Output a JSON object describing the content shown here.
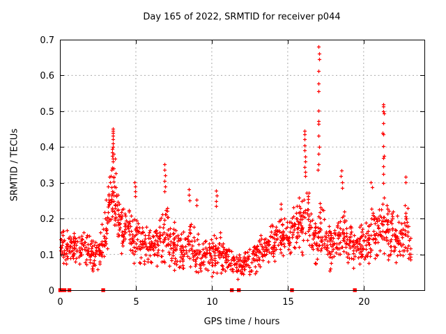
{
  "title": "Day 165 of 2022, SRMTID for receiver p044",
  "axes": {
    "xlabel": "GPS time / hours",
    "ylabel": "SRMTID / TECUs",
    "xlim": [
      0,
      24
    ],
    "ylim": [
      0,
      0.7
    ],
    "xticks": [
      {
        "value": 0,
        "label": "0"
      },
      {
        "value": 5,
        "label": "5"
      },
      {
        "value": 10,
        "label": "10"
      },
      {
        "value": 15,
        "label": "15"
      },
      {
        "value": 20,
        "label": "20"
      }
    ],
    "yticks": [
      {
        "value": 0.0,
        "label": "0"
      },
      {
        "value": 0.1,
        "label": "0.1"
      },
      {
        "value": 0.2,
        "label": "0.2"
      },
      {
        "value": 0.3,
        "label": "0.3"
      },
      {
        "value": 0.4,
        "label": "0.4"
      },
      {
        "value": 0.5,
        "label": "0.5"
      },
      {
        "value": 0.6,
        "label": "0.6"
      },
      {
        "value": 0.7,
        "label": "0.7"
      }
    ],
    "grid": true
  },
  "colors": {
    "marker": "#ff0000",
    "grid": "#a8a8a8",
    "border": "#000000",
    "background": "#ffffff"
  },
  "chart_data": {
    "type": "scatter",
    "marker": "plus",
    "series_name": "SRMTID",
    "x_range_of_data": [
      0.0,
      23.1
    ],
    "notable_features": [
      "baseline band 0.05-0.2 TECUs across whole day",
      "broad peak near 3.5 h reaching 0.45",
      "columns near 4.9 h (0.30), 6.9 h (0.35), 8.5 h (0.28), 10.3 h (0.28)",
      "quiet dip 11-12.5 h down to ~0.03",
      "column near 16.1 h (0.44)",
      "tall sparse spike at 17.0 h reaching 0.68",
      "spike at 21.3 h reaching 0.52"
    ],
    "envelope": [
      {
        "x": 0.0,
        "mean": 0.115,
        "spread": 0.055,
        "density": 70
      },
      {
        "x": 0.7,
        "mean": 0.12,
        "spread": 0.05,
        "density": 65
      },
      {
        "x": 1.5,
        "mean": 0.125,
        "spread": 0.055,
        "density": 65
      },
      {
        "x": 2.1,
        "mean": 0.095,
        "spread": 0.05,
        "density": 60
      },
      {
        "x": 2.6,
        "mean": 0.1,
        "spread": 0.06,
        "density": 62
      },
      {
        "x": 3.0,
        "mean": 0.16,
        "spread": 0.09,
        "density": 80
      },
      {
        "x": 3.3,
        "mean": 0.25,
        "spread": 0.11,
        "density": 95
      },
      {
        "x": 3.55,
        "mean": 0.3,
        "spread": 0.13,
        "density": 95
      },
      {
        "x": 3.8,
        "mean": 0.21,
        "spread": 0.09,
        "density": 80
      },
      {
        "x": 4.1,
        "mean": 0.165,
        "spread": 0.075,
        "density": 70
      },
      {
        "x": 4.4,
        "mean": 0.185,
        "spread": 0.08,
        "density": 70
      },
      {
        "x": 4.7,
        "mean": 0.14,
        "spread": 0.065,
        "density": 65
      },
      {
        "x": 5.0,
        "mean": 0.155,
        "spread": 0.085,
        "density": 65
      },
      {
        "x": 5.3,
        "mean": 0.125,
        "spread": 0.06,
        "density": 60
      },
      {
        "x": 6.0,
        "mean": 0.12,
        "spread": 0.06,
        "density": 60
      },
      {
        "x": 6.5,
        "mean": 0.13,
        "spread": 0.07,
        "density": 60
      },
      {
        "x": 6.95,
        "mean": 0.165,
        "spread": 0.095,
        "density": 70
      },
      {
        "x": 7.3,
        "mean": 0.14,
        "spread": 0.08,
        "density": 65
      },
      {
        "x": 7.8,
        "mean": 0.105,
        "spread": 0.06,
        "density": 60
      },
      {
        "x": 8.3,
        "mean": 0.115,
        "spread": 0.07,
        "density": 60
      },
      {
        "x": 8.6,
        "mean": 0.13,
        "spread": 0.08,
        "density": 60
      },
      {
        "x": 9.0,
        "mean": 0.1,
        "spread": 0.06,
        "density": 60
      },
      {
        "x": 9.6,
        "mean": 0.1,
        "spread": 0.06,
        "density": 60
      },
      {
        "x": 10.0,
        "mean": 0.09,
        "spread": 0.055,
        "density": 60
      },
      {
        "x": 10.35,
        "mean": 0.115,
        "spread": 0.075,
        "density": 60
      },
      {
        "x": 10.8,
        "mean": 0.09,
        "spread": 0.055,
        "density": 58
      },
      {
        "x": 11.3,
        "mean": 0.075,
        "spread": 0.045,
        "density": 55
      },
      {
        "x": 12.0,
        "mean": 0.07,
        "spread": 0.045,
        "density": 55
      },
      {
        "x": 12.6,
        "mean": 0.085,
        "spread": 0.05,
        "density": 56
      },
      {
        "x": 13.2,
        "mean": 0.105,
        "spread": 0.055,
        "density": 60
      },
      {
        "x": 13.8,
        "mean": 0.125,
        "spread": 0.06,
        "density": 60
      },
      {
        "x": 14.4,
        "mean": 0.145,
        "spread": 0.07,
        "density": 62
      },
      {
        "x": 15.0,
        "mean": 0.15,
        "spread": 0.07,
        "density": 62
      },
      {
        "x": 15.5,
        "mean": 0.17,
        "spread": 0.085,
        "density": 65
      },
      {
        "x": 15.9,
        "mean": 0.19,
        "spread": 0.1,
        "density": 75
      },
      {
        "x": 16.15,
        "mean": 0.24,
        "spread": 0.12,
        "density": 80
      },
      {
        "x": 16.5,
        "mean": 0.155,
        "spread": 0.09,
        "density": 65
      },
      {
        "x": 16.9,
        "mean": 0.14,
        "spread": 0.08,
        "density": 65
      },
      {
        "x": 17.1,
        "mean": 0.17,
        "spread": 0.1,
        "density": 70
      },
      {
        "x": 17.4,
        "mean": 0.145,
        "spread": 0.085,
        "density": 65
      },
      {
        "x": 17.8,
        "mean": 0.12,
        "spread": 0.07,
        "density": 62
      },
      {
        "x": 18.3,
        "mean": 0.14,
        "spread": 0.08,
        "density": 62
      },
      {
        "x": 18.6,
        "mean": 0.17,
        "spread": 0.095,
        "density": 65
      },
      {
        "x": 19.0,
        "mean": 0.13,
        "spread": 0.07,
        "density": 62
      },
      {
        "x": 19.6,
        "mean": 0.12,
        "spread": 0.065,
        "density": 62
      },
      {
        "x": 20.1,
        "mean": 0.135,
        "spread": 0.075,
        "density": 62
      },
      {
        "x": 20.6,
        "mean": 0.155,
        "spread": 0.085,
        "density": 65
      },
      {
        "x": 21.0,
        "mean": 0.17,
        "spread": 0.09,
        "density": 68
      },
      {
        "x": 21.35,
        "mean": 0.19,
        "spread": 0.1,
        "density": 70
      },
      {
        "x": 21.7,
        "mean": 0.155,
        "spread": 0.085,
        "density": 65
      },
      {
        "x": 22.1,
        "mean": 0.15,
        "spread": 0.08,
        "density": 65
      },
      {
        "x": 22.5,
        "mean": 0.145,
        "spread": 0.085,
        "density": 65
      },
      {
        "x": 22.85,
        "mean": 0.16,
        "spread": 0.095,
        "density": 68
      },
      {
        "x": 23.1,
        "mean": 0.12,
        "spread": 0.07,
        "density": 60
      }
    ],
    "spike_columns": [
      {
        "x": 17.03,
        "ys": [
          0.68,
          0.662,
          0.645,
          0.612,
          0.578,
          0.556,
          0.502,
          0.472,
          0.465,
          0.432,
          0.401,
          0.381,
          0.352,
          0.336
        ]
      },
      {
        "x": 21.3,
        "ys": [
          0.52,
          0.513,
          0.5,
          0.494,
          0.466,
          0.44,
          0.435,
          0.402,
          0.376,
          0.37,
          0.346,
          0.325,
          0.3
        ]
      },
      {
        "x": 16.12,
        "ys": [
          0.445,
          0.436,
          0.421,
          0.404,
          0.39,
          0.374,
          0.359,
          0.344,
          0.331
        ]
      },
      {
        "x": 3.47,
        "ys": [
          0.452,
          0.446,
          0.44,
          0.431,
          0.421,
          0.41,
          0.401,
          0.394,
          0.385,
          0.376,
          0.368,
          0.36
        ]
      },
      {
        "x": 6.92,
        "ys": [
          0.352,
          0.336,
          0.321,
          0.305,
          0.29,
          0.276
        ]
      },
      {
        "x": 4.93,
        "ys": [
          0.301,
          0.29,
          0.276,
          0.262
        ]
      },
      {
        "x": 8.52,
        "ys": [
          0.281,
          0.266,
          0.251
        ]
      },
      {
        "x": 10.28,
        "ys": [
          0.279,
          0.264,
          0.249,
          0.236
        ]
      },
      {
        "x": 18.55,
        "ys": [
          0.334,
          0.318,
          0.301,
          0.286
        ]
      },
      {
        "x": 20.52,
        "ys": [
          0.301,
          0.287
        ]
      },
      {
        "x": 22.78,
        "ys": [
          0.316,
          0.301
        ]
      },
      {
        "x": 14.55,
        "ys": [
          0.242,
          0.228
        ]
      },
      {
        "x": 9.02,
        "ys": [
          0.252,
          0.238
        ]
      }
    ],
    "zero_value_squares_x": [
      0.02,
      0.08,
      0.3,
      0.62,
      2.85,
      11.32,
      11.78,
      15.28,
      19.42
    ]
  }
}
